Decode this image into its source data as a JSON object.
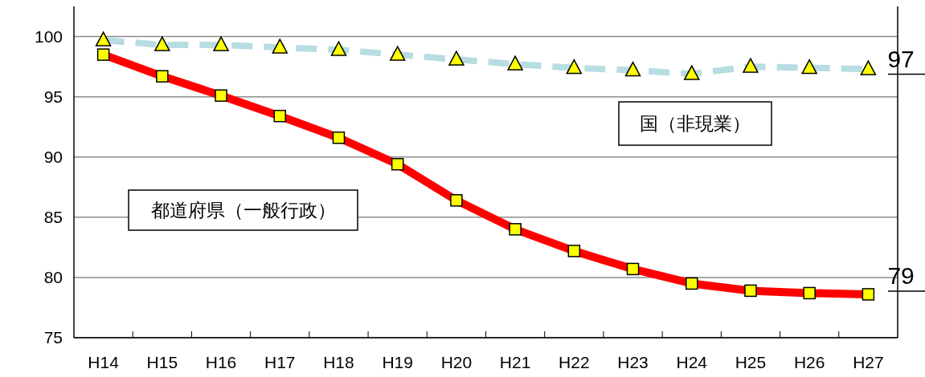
{
  "chart_data": {
    "type": "line",
    "categories": [
      "H14",
      "H15",
      "H16",
      "H17",
      "H18",
      "H19",
      "H20",
      "H21",
      "H22",
      "H23",
      "H24",
      "H25",
      "H26",
      "H27"
    ],
    "series": [
      {
        "name": "都道府県（一般行政）",
        "color": "#ff0000",
        "marker": "square",
        "line_style": "solid",
        "values": [
          98.5,
          96.7,
          95.1,
          93.4,
          91.6,
          89.4,
          86.4,
          84.0,
          82.2,
          80.7,
          79.5,
          78.9,
          78.7,
          78.6
        ]
      },
      {
        "name": "国（非現業）",
        "color": "#b7dde3",
        "marker": "triangle",
        "line_style": "dashed",
        "values": [
          99.7,
          99.3,
          99.3,
          99.1,
          98.9,
          98.5,
          98.1,
          97.7,
          97.4,
          97.2,
          96.9,
          97.5,
          97.4,
          97.3
        ]
      }
    ],
    "ylim": [
      75,
      102.5
    ],
    "yticks": [
      75,
      80,
      85,
      90,
      95,
      100
    ],
    "grid": "y",
    "annotations": [
      {
        "text": "97",
        "x": "H27",
        "y": 97
      },
      {
        "text": "79",
        "x": "H27",
        "y": 79
      }
    ]
  }
}
